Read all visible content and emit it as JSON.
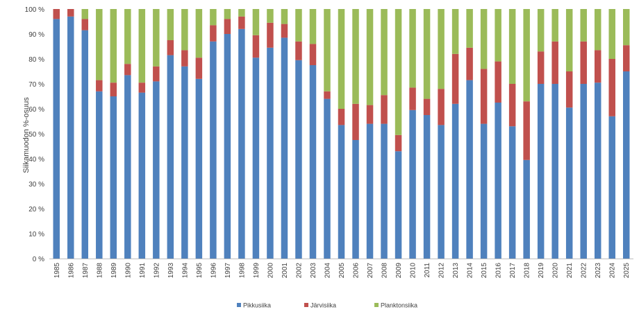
{
  "chart_data": {
    "type": "bar",
    "stacked": true,
    "normalized": true,
    "ylabel": "Siikamuodon %-osuus",
    "xlabel": "",
    "ylim": [
      0,
      100
    ],
    "yticks": [
      "0 %",
      "10 %",
      "20 %",
      "30 %",
      "40 %",
      "50 %",
      "60 %",
      "70 %",
      "80 %",
      "90 %",
      "100 %"
    ],
    "grid": false,
    "legend_position": "bottom",
    "categories": [
      "1985",
      "1986",
      "1987",
      "1988",
      "1989",
      "1990",
      "1991",
      "1992",
      "1993",
      "1994",
      "1995",
      "1996",
      "1997",
      "1998",
      "1999",
      "2000",
      "2001",
      "2002",
      "2003",
      "2004",
      "2005",
      "2006",
      "2007",
      "2008",
      "2009",
      "2010",
      "2011",
      "2012",
      "2013",
      "2014",
      "2015",
      "2016",
      "2017",
      "2018",
      "2019",
      "2020",
      "2021",
      "2022",
      "2023",
      "2024",
      "2025"
    ],
    "series": [
      {
        "name": "Pikkusiika",
        "color": "#4F81BD",
        "values": [
          96,
          97,
          91.5,
          67,
          65,
          73.5,
          66.5,
          71,
          81.5,
          77,
          72,
          87,
          90,
          92,
          80.5,
          84.5,
          88.5,
          79.5,
          77.5,
          64,
          53.5,
          47.5,
          54,
          54,
          43,
          59.5,
          57.5,
          53.5,
          62,
          71.5,
          54,
          62.5,
          53,
          39.5,
          70,
          70,
          60.5,
          70,
          70.5,
          57,
          75
        ]
      },
      {
        "name": "Järvisiika",
        "color": "#C0504D",
        "values": [
          4,
          3,
          4.5,
          4.5,
          5.5,
          4.5,
          4,
          6,
          6,
          6.5,
          8.5,
          6.5,
          6,
          5,
          9,
          10,
          5.5,
          7.5,
          8.5,
          3,
          6.5,
          14.5,
          7.5,
          11.5,
          6.5,
          9,
          6.5,
          14.5,
          20,
          13,
          22,
          16.5,
          17,
          23.5,
          13,
          17,
          14.5,
          17,
          13,
          23,
          10.5
        ]
      },
      {
        "name": "Planktonsiika",
        "color": "#9BBB59",
        "values": [
          0,
          0,
          4,
          28.5,
          29.5,
          22,
          29.5,
          23,
          12.5,
          16.5,
          19.5,
          6.5,
          4,
          3,
          10.5,
          5.5,
          6,
          13,
          14,
          33,
          40,
          38,
          38.5,
          34.5,
          50.5,
          31.5,
          36,
          32,
          18,
          15.5,
          24,
          21,
          30,
          37,
          17,
          13,
          25,
          13,
          16.5,
          20,
          14.5
        ]
      }
    ]
  }
}
